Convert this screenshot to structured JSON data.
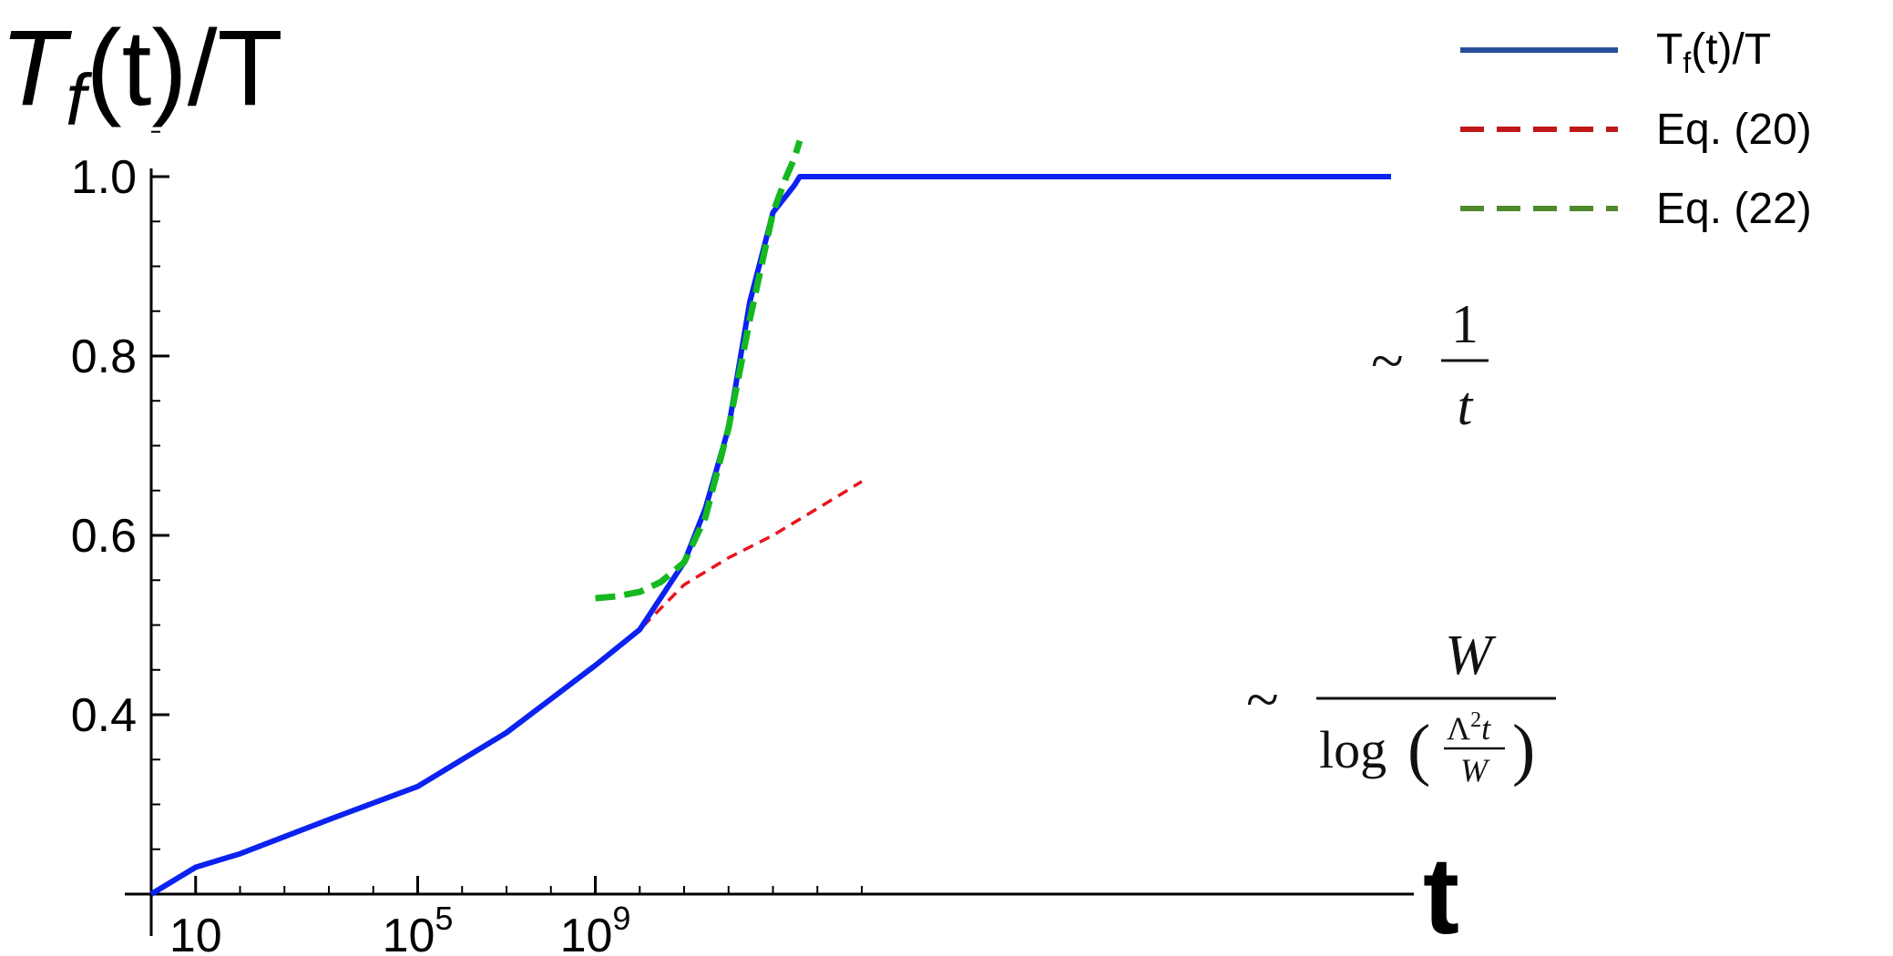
{
  "chart_data": {
    "type": "line",
    "ylabel": {
      "main": "T",
      "sub": "f",
      "rest": "(t)/T"
    },
    "xlabel": "t",
    "x_scale": "log",
    "x_ticks": [
      {
        "value": 1,
        "base": "10",
        "exp": ""
      },
      {
        "value": 100000,
        "base": "10",
        "exp": "5"
      },
      {
        "value": 1000000000,
        "base": "10",
        "exp": "9"
      }
    ],
    "y_ticks": [
      "0.4",
      "0.6",
      "0.8",
      "1.0"
    ],
    "ylim": [
      0.2,
      1.05
    ],
    "legend": {
      "placement": "top-right"
    },
    "series": [
      {
        "name": "Tf(t)/T",
        "name_main": "T",
        "name_sub": "f",
        "name_rest": "(t)/T",
        "color": "#0b22f0",
        "dash": "solid",
        "x": [
          0.1,
          1,
          10,
          1000,
          100000,
          10000000,
          1000000000,
          10000000000,
          100000000000,
          300000000000,
          1000000000000,
          3000000000000,
          10000000000000,
          30000000000000,
          40000000000000,
          50000000000000,
          1000000000000000
        ],
        "y": [
          0.2,
          0.23,
          0.245,
          0.283,
          0.32,
          0.38,
          0.455,
          0.495,
          0.57,
          0.63,
          0.72,
          0.86,
          0.96,
          0.99,
          1.0,
          1.0,
          1.0
        ]
      },
      {
        "name": "Eq. (20)",
        "color": "#e8141c",
        "dash": "dashed",
        "x": [
          0.1,
          1,
          10,
          1000,
          100000,
          10000000,
          1000000000,
          10000000000,
          100000000000,
          1000000000000,
          10000000000000,
          100000000000000,
          1000000000000000
        ],
        "y": [
          0.2,
          0.23,
          0.245,
          0.283,
          0.32,
          0.38,
          0.455,
          0.495,
          0.545,
          0.575,
          0.6,
          0.63,
          0.66
        ]
      },
      {
        "name": "Eq. (22)",
        "color": "#16b820",
        "dash": "dashed",
        "x": [
          1000000000,
          3000000000,
          10000000000,
          30000000000,
          100000000000,
          300000000000,
          1000000000000,
          3000000000000,
          10000000000000,
          20000000000000,
          30000000000000,
          40000000000000
        ],
        "y": [
          0.53,
          0.532,
          0.537,
          0.548,
          0.57,
          0.62,
          0.72,
          0.84,
          0.96,
          1.0,
          1.02,
          1.04
        ]
      }
    ],
    "legend_colors": [
      "#2a4f9a",
      "#c01818",
      "#4f8a2c"
    ],
    "annotations": [
      {
        "tilde": "~",
        "numerator": "1",
        "denominator": "t"
      },
      {
        "tilde": "~",
        "numerator": "W",
        "denominator_func": "log",
        "inner_num_base": "Λ",
        "inner_num_exp": "2",
        "inner_num_var": "t",
        "inner_den": "W"
      }
    ]
  }
}
